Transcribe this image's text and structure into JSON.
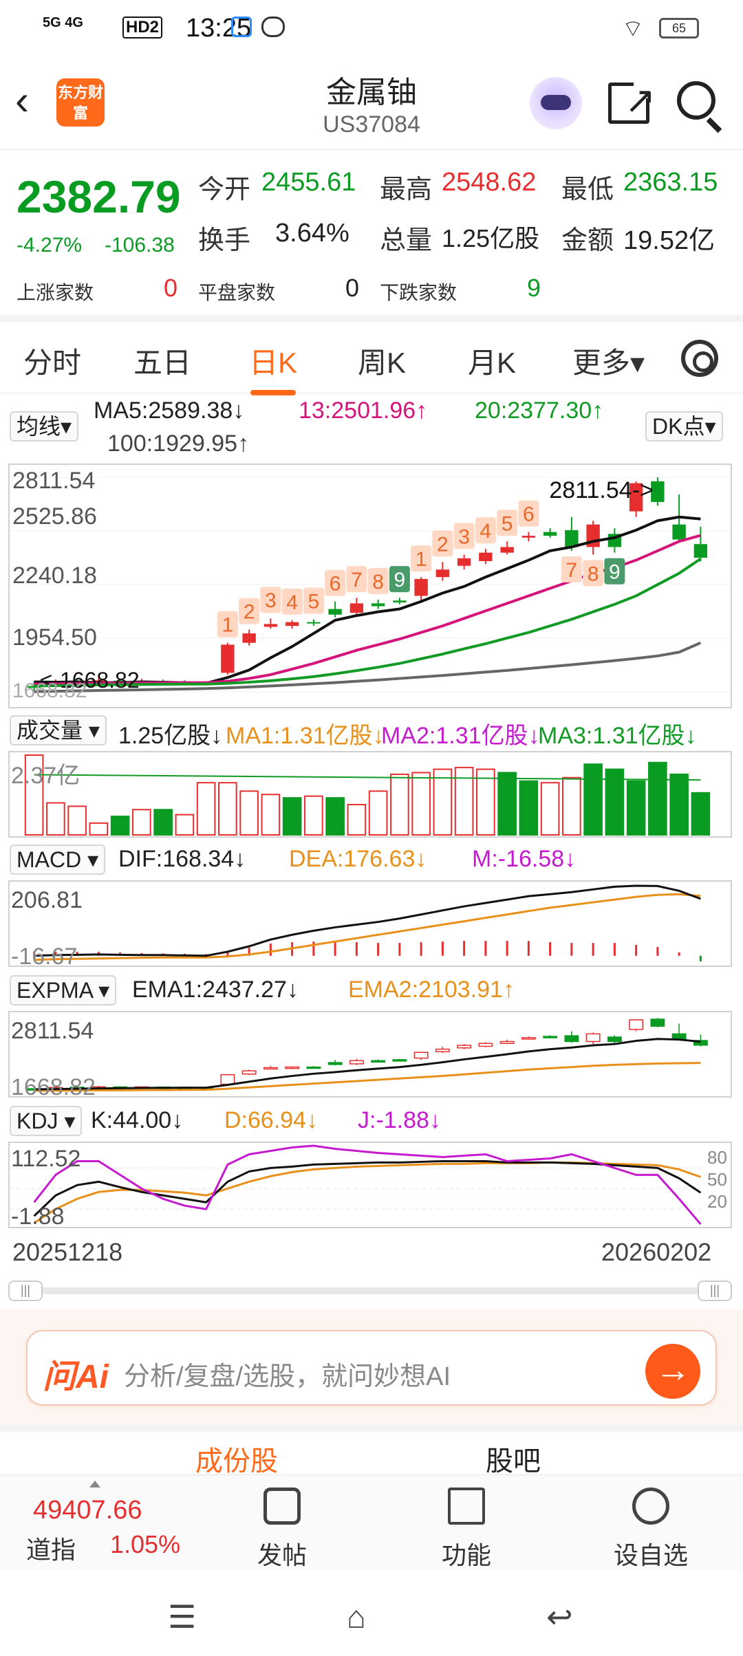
{
  "status_bar": {
    "network": "5G 4G",
    "hd": "HD2",
    "time": "13:25",
    "battery": "65"
  },
  "header": {
    "logo_text": "东方财富",
    "title": "金属铀",
    "code": "US37084"
  },
  "quote": {
    "price": "2382.79",
    "change_pct": "-4.27%",
    "change_abs": "-106.38",
    "open_label": "今开",
    "open": "2455.61",
    "high_label": "最高",
    "high": "2548.62",
    "low_label": "最低",
    "low": "2363.15",
    "turnover_label": "换手",
    "turnover": "3.64%",
    "volume_label": "总量",
    "volume": "1.25亿股",
    "amount_label": "金额",
    "amount": "19.52亿",
    "up_label": "上涨家数",
    "up": "0",
    "flat_label": "平盘家数",
    "flat": "0",
    "down_label": "下跌家数",
    "down": "9"
  },
  "tabs": [
    {
      "label": "分时"
    },
    {
      "label": "五日"
    },
    {
      "label": "日K",
      "active": true
    },
    {
      "label": "周K"
    },
    {
      "label": "月K"
    },
    {
      "label": "更多▾"
    }
  ],
  "ma_row": {
    "selector": "均线▾",
    "ma5": "MA5:2589.38↓",
    "ma13": "13:2501.96↑",
    "ma20": "20:2377.30↑",
    "ma100": "100:1929.95↑",
    "dk": "DK点▾"
  },
  "volume_row": {
    "selector": "成交量 ▾",
    "vol": "1.25亿股↓",
    "ma1": "MA1:1.31亿股↓",
    "ma2": "MA2:1.31亿股↓",
    "ma3": "MA3:1.31亿股↓",
    "axis_max": "2.37亿"
  },
  "macd_row": {
    "selector": "MACD ▾",
    "dif": "DIF:168.34↓",
    "dea": "DEA:176.63↓",
    "m": "M:-16.58↓",
    "axis_max": "206.81",
    "axis_min": "-16.67"
  },
  "expma_row": {
    "selector": "EXPMA ▾",
    "ema1": "EMA1:2437.27↓",
    "ema2": "EMA2:2103.91↑",
    "axis_max": "2811.54",
    "axis_min": "1668.82"
  },
  "kdj_row": {
    "selector": "KDJ ▾",
    "k": "K:44.00↓",
    "d": "D:66.94↓",
    "j": "J:-1.88↓",
    "axis_max": "112.52",
    "axis_min": "-1.88",
    "ref_80": "80",
    "ref_50": "50",
    "ref_20": "20"
  },
  "chart_data": {
    "type": "candlestick",
    "y_ticks": [
      "2811.54",
      "2525.86",
      "2240.18",
      "1954.50",
      "1668.82"
    ],
    "high_marker": "2811.54->",
    "low_marker": "<-1668.82",
    "x_start": "20251218",
    "x_end": "20260202",
    "ylim": [
      1668.82,
      2811.54
    ],
    "candles": [
      {
        "o": 1700,
        "c": 1690,
        "h": 1725,
        "l": 1668.82
      },
      {
        "o": 1705,
        "c": 1720,
        "h": 1735,
        "l": 1695
      },
      {
        "o": 1725,
        "c": 1715,
        "h": 1740,
        "l": 1705
      },
      {
        "o": 1712,
        "c": 1730,
        "h": 1745,
        "l": 1705
      },
      {
        "o": 1728,
        "c": 1722,
        "h": 1740,
        "l": 1712
      },
      {
        "o": 1720,
        "c": 1728,
        "h": 1738,
        "l": 1712
      },
      {
        "o": 1726,
        "c": 1722,
        "h": 1734,
        "l": 1712
      },
      {
        "o": 1722,
        "c": 1720,
        "h": 1730,
        "l": 1712
      },
      {
        "o": 1720,
        "c": 1715,
        "h": 1725,
        "l": 1705
      },
      {
        "o": 1770,
        "c": 1920,
        "h": 1930,
        "l": 1760
      },
      {
        "o": 1930,
        "c": 1980,
        "h": 2000,
        "l": 1915
      },
      {
        "o": 2015,
        "c": 2030,
        "h": 2060,
        "l": 2005
      },
      {
        "o": 2020,
        "c": 2040,
        "h": 2050,
        "l": 2005
      },
      {
        "o": 2040,
        "c": 2035,
        "h": 2055,
        "l": 2020
      },
      {
        "o": 2110,
        "c": 2080,
        "h": 2150,
        "l": 2065
      },
      {
        "o": 2090,
        "c": 2140,
        "h": 2170,
        "l": 2070
      },
      {
        "o": 2140,
        "c": 2125,
        "h": 2160,
        "l": 2110
      },
      {
        "o": 2155,
        "c": 2145,
        "h": 2170,
        "l": 2135
      },
      {
        "o": 2180,
        "c": 2270,
        "h": 2280,
        "l": 2150
      },
      {
        "o": 2280,
        "c": 2320,
        "h": 2360,
        "l": 2260
      },
      {
        "o": 2340,
        "c": 2380,
        "h": 2400,
        "l": 2320
      },
      {
        "o": 2365,
        "c": 2410,
        "h": 2430,
        "l": 2350
      },
      {
        "o": 2410,
        "c": 2440,
        "h": 2470,
        "l": 2400
      },
      {
        "o": 2490,
        "c": 2500,
        "h": 2520,
        "l": 2470
      },
      {
        "o": 2520,
        "c": 2500,
        "h": 2540,
        "l": 2490
      },
      {
        "o": 2530,
        "c": 2440,
        "h": 2600,
        "l": 2420
      },
      {
        "o": 2440,
        "c": 2560,
        "h": 2580,
        "l": 2400
      },
      {
        "o": 2510,
        "c": 2440,
        "h": 2540,
        "l": 2410
      },
      {
        "o": 2630,
        "c": 2780,
        "h": 2790,
        "l": 2600
      },
      {
        "o": 2790,
        "c": 2680,
        "h": 2811.54,
        "l": 2660
      },
      {
        "o": 2560,
        "c": 2480,
        "h": 2720,
        "l": 2470
      },
      {
        "o": 2455.61,
        "c": 2382.79,
        "h": 2548.62,
        "l": 2363.15
      }
    ],
    "ma_lines": [
      {
        "name": "MA5",
        "color": "#111111",
        "values": [
          1722,
          1720,
          1722,
          1718,
          1718,
          1722,
          1720,
          1718,
          1715,
          1745,
          1785,
          1850,
          1910,
          1980,
          2050,
          2075,
          2095,
          2110,
          2150,
          2195,
          2230,
          2280,
          2325,
          2370,
          2420,
          2440,
          2470,
          2490,
          2530,
          2580,
          2600,
          2589.38
        ]
      },
      {
        "name": "MA13",
        "color": "#d4147a",
        "values": [
          1710,
          1712,
          1714,
          1715,
          1716,
          1717,
          1718,
          1718,
          1718,
          1725,
          1740,
          1760,
          1790,
          1820,
          1855,
          1890,
          1920,
          1950,
          1985,
          2020,
          2060,
          2100,
          2140,
          2180,
          2220,
          2260,
          2300,
          2330,
          2370,
          2420,
          2470,
          2501.96
        ]
      },
      {
        "name": "MA20",
        "color": "#119a24",
        "values": [
          1700,
          1702,
          1704,
          1706,
          1707,
          1708,
          1709,
          1710,
          1710,
          1714,
          1720,
          1728,
          1738,
          1750,
          1765,
          1782,
          1800,
          1820,
          1845,
          1870,
          1898,
          1925,
          1955,
          1985,
          2020,
          2055,
          2095,
          2135,
          2180,
          2240,
          2300,
          2377.3
        ]
      },
      {
        "name": "MA100",
        "color": "#666666",
        "values": [
          1670,
          1672,
          1674,
          1676,
          1678,
          1680,
          1682,
          1684,
          1686,
          1690,
          1695,
          1700,
          1706,
          1712,
          1718,
          1725,
          1732,
          1740,
          1748,
          1756,
          1765,
          1774,
          1783,
          1793,
          1803,
          1813,
          1824,
          1835,
          1847,
          1860,
          1880,
          1929.95
        ]
      }
    ],
    "td_labels": [
      {
        "i": 9,
        "text": "1"
      },
      {
        "i": 10,
        "text": "2"
      },
      {
        "i": 11,
        "text": "3"
      },
      {
        "i": 12,
        "text": "4"
      },
      {
        "i": 13,
        "text": "5"
      },
      {
        "i": 14,
        "text": "6"
      },
      {
        "i": 15,
        "text": "7"
      },
      {
        "i": 16,
        "text": "8"
      },
      {
        "i": 17,
        "text": "9",
        "green": true
      },
      {
        "i": 18,
        "text": "1"
      },
      {
        "i": 19,
        "text": "2"
      },
      {
        "i": 20,
        "text": "3"
      },
      {
        "i": 21,
        "text": "4"
      },
      {
        "i": 22,
        "text": "5"
      },
      {
        "i": 23,
        "text": "6"
      },
      {
        "i": 25,
        "text": "7",
        "below": true
      },
      {
        "i": 26,
        "text": "8",
        "below": true
      },
      {
        "i": 27,
        "text": "9",
        "green": true,
        "below": true
      }
    ],
    "volume": [
      2.37,
      0.95,
      0.85,
      0.35,
      0.55,
      0.75,
      0.75,
      0.6,
      1.55,
      1.55,
      1.3,
      1.2,
      1.1,
      1.15,
      1.1,
      0.9,
      1.3,
      1.8,
      1.85,
      1.95,
      2.0,
      1.95,
      1.85,
      1.6,
      1.55,
      1.7,
      2.1,
      1.95,
      1.6,
      2.15,
      1.8,
      1.25
    ],
    "volume_up": [
      true,
      true,
      true,
      true,
      false,
      true,
      false,
      true,
      true,
      true,
      true,
      true,
      false,
      true,
      false,
      true,
      true,
      true,
      true,
      true,
      true,
      true,
      false,
      false,
      true,
      true,
      false,
      false,
      false,
      false,
      false,
      false
    ],
    "volume_ylim": [
      0,
      2.37
    ],
    "macd_dif": [
      0,
      2,
      3,
      4,
      3,
      2,
      2,
      1,
      0,
      12,
      28,
      48,
      62,
      74,
      84,
      92,
      100,
      110,
      122,
      134,
      146,
      156,
      166,
      176,
      182,
      188,
      196,
      204,
      206.81,
      206,
      192,
      168.34
    ],
    "macd_dea": [
      -12,
      -10,
      -9,
      -8,
      -7,
      -6,
      -5,
      -5,
      -5,
      -2,
      4,
      12,
      22,
      32,
      42,
      52,
      62,
      72,
      82,
      92,
      102,
      112,
      122,
      132,
      142,
      150,
      158,
      166,
      174,
      180,
      182,
      176.63
    ],
    "macd_m": [
      12,
      12,
      12,
      12,
      10,
      8,
      7,
      6,
      5,
      14,
      24,
      36,
      40,
      42,
      42,
      40,
      38,
      38,
      40,
      42,
      44,
      44,
      44,
      44,
      40,
      38,
      38,
      38,
      32,
      26,
      10,
      -16.58
    ],
    "macd_ylim": [
      -16.67,
      206.81
    ],
    "expma1": [
      1690,
      1695,
      1700,
      1705,
      1708,
      1712,
      1714,
      1716,
      1716,
      1760,
      1810,
      1860,
      1900,
      1935,
      1960,
      1990,
      2015,
      2040,
      2075,
      2115,
      2160,
      2200,
      2240,
      2285,
      2320,
      2345,
      2380,
      2400,
      2450,
      2480,
      2470,
      2437.27
    ],
    "expma2": [
      1668.82,
      1670,
      1672,
      1674,
      1676,
      1678,
      1680,
      1682,
      1684,
      1700,
      1720,
      1740,
      1760,
      1780,
      1800,
      1820,
      1840,
      1860,
      1880,
      1900,
      1925,
      1950,
      1975,
      2000,
      2020,
      2040,
      2060,
      2075,
      2085,
      2095,
      2100,
      2103.91
    ],
    "kdj_k": [
      10,
      40,
      55,
      60,
      52,
      45,
      40,
      35,
      30,
      60,
      75,
      80,
      82,
      85,
      86,
      87,
      88,
      88,
      89,
      90,
      90,
      90,
      88,
      88,
      88,
      87,
      86,
      84,
      82,
      80,
      65,
      44.0
    ],
    "kdj_d": [
      0,
      20,
      35,
      45,
      48,
      48,
      46,
      44,
      40,
      50,
      60,
      68,
      74,
      78,
      80,
      82,
      83,
      84,
      85,
      86,
      86,
      87,
      87,
      87,
      88,
      88,
      87,
      86,
      85,
      84,
      78,
      66.94
    ],
    "kdj_j": [
      30,
      70,
      90,
      90,
      70,
      50,
      35,
      25,
      20,
      85,
      100,
      105,
      110,
      112.52,
      108,
      105,
      102,
      100,
      98,
      96,
      98,
      100,
      90,
      92,
      94,
      100,
      90,
      80,
      70,
      70,
      35,
      -1.88
    ],
    "kdj_ylim": [
      -1.88,
      112.52
    ]
  },
  "bottom": {
    "ai_logo": "问Ai",
    "ai_placeholder": "分析/复盘/选股，就问妙想AI",
    "ai_go": "→",
    "seg_left": "成份股",
    "seg_right": "股吧",
    "djia_value": "49407.66",
    "djia_name": "道指",
    "djia_change": "1.05%",
    "post": "发帖",
    "features": "功能",
    "watch": "设自选"
  },
  "colors": {
    "up": "#e62e2e",
    "down": "#0a9b22",
    "accent": "#ff6a1a",
    "td_badge": "#ffd7c2"
  }
}
